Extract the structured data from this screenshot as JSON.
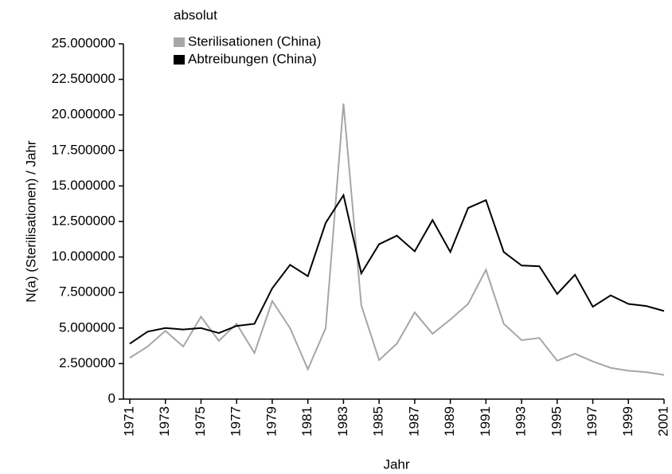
{
  "chart_data": {
    "type": "line",
    "xlabel": "Jahr",
    "ylabel": "N(a) (Sterilisationen) / Jahr",
    "legend_title": "absolut",
    "legend": "top-left",
    "x": [
      1971,
      1972,
      1973,
      1974,
      1975,
      1976,
      1977,
      1978,
      1979,
      1980,
      1981,
      1982,
      1983,
      1984,
      1985,
      1986,
      1987,
      1988,
      1989,
      1990,
      1991,
      1992,
      1993,
      1994,
      1995,
      1996,
      1997,
      1998,
      1999,
      2000,
      2001
    ],
    "series": [
      {
        "name": "Sterilisationen (China)",
        "color": "#a6a6a6",
        "values": [
          2900000,
          3700000,
          4800000,
          3700000,
          5800000,
          4100000,
          5300000,
          3250000,
          6900000,
          5000000,
          2100000,
          5000000,
          20800000,
          6600000,
          2750000,
          3900000,
          6100000,
          4600000,
          5600000,
          6700000,
          9100000,
          5300000,
          4150000,
          4300000,
          2700000,
          3200000,
          2650000,
          2200000,
          2000000,
          1900000,
          1700000
        ]
      },
      {
        "name": "Abtreibungen (China)",
        "color": "#000000",
        "values": [
          3900000,
          4750000,
          5000000,
          4900000,
          5000000,
          4650000,
          5150000,
          5300000,
          7800000,
          9450000,
          8650000,
          12400000,
          14350000,
          8850000,
          10900000,
          11500000,
          10400000,
          12600000,
          10350000,
          13450000,
          14000000,
          10350000,
          9400000,
          9350000,
          7400000,
          8750000,
          6500000,
          7300000,
          6700000,
          6550000,
          6200000
        ]
      }
    ],
    "xlim": [
      1971,
      2001
    ],
    "xticks": [
      1971,
      1973,
      1975,
      1977,
      1979,
      1981,
      1983,
      1985,
      1987,
      1989,
      1991,
      1993,
      1995,
      1997,
      1999,
      2001
    ],
    "ylim": [
      0,
      25000000
    ],
    "yticks": [
      0,
      {
        "value": 2500000,
        "label": "2.500000"
      },
      {
        "value": 5000000,
        "label": "5.000000"
      },
      {
        "value": 7500000,
        "label": "7.500000"
      },
      {
        "value": 10000000,
        "label": "10.000000"
      },
      {
        "value": 12500000,
        "label": "12.500000"
      },
      {
        "value": 15000000,
        "label": "15.000000"
      },
      {
        "value": 17500000,
        "label": "17.500000"
      },
      {
        "value": 20000000,
        "label": "20.000000"
      },
      {
        "value": 22500000,
        "label": "22.500000"
      },
      {
        "value": 25000000,
        "label": "25.000000"
      }
    ]
  }
}
